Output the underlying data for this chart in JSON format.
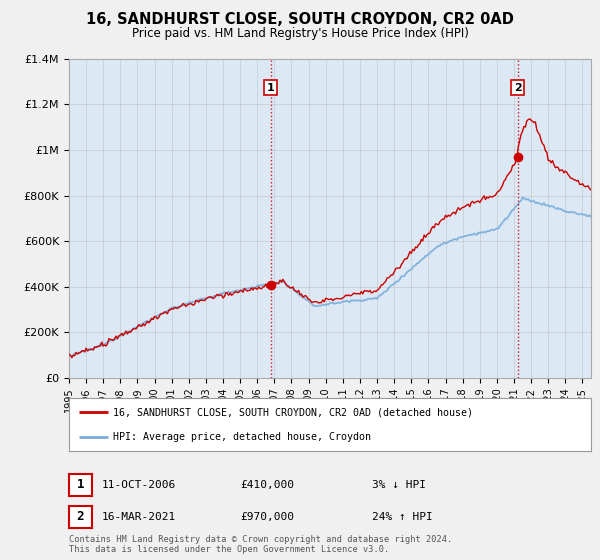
{
  "title": "16, SANDHURST CLOSE, SOUTH CROYDON, CR2 0AD",
  "subtitle": "Price paid vs. HM Land Registry's House Price Index (HPI)",
  "legend_label_red": "16, SANDHURST CLOSE, SOUTH CROYDON, CR2 0AD (detached house)",
  "legend_label_blue": "HPI: Average price, detached house, Croydon",
  "transaction1_label": "1",
  "transaction1_date": "11-OCT-2006",
  "transaction1_price": "£410,000",
  "transaction1_hpi": "3% ↓ HPI",
  "transaction2_label": "2",
  "transaction2_date": "16-MAR-2021",
  "transaction2_price": "£970,000",
  "transaction2_hpi": "24% ↑ HPI",
  "footer": "Contains HM Land Registry data © Crown copyright and database right 2024.\nThis data is licensed under the Open Government Licence v3.0.",
  "vline1_x": 2006.78,
  "vline2_x": 2021.21,
  "dot1_x": 2006.78,
  "dot1_y": 410000,
  "dot2_x": 2021.21,
  "dot2_y": 970000,
  "ylim_min": 0,
  "ylim_max": 1400000,
  "xlim_min": 1995,
  "xlim_max": 2025.5,
  "yticks": [
    0,
    200000,
    400000,
    600000,
    800000,
    1000000,
    1200000,
    1400000
  ],
  "ytick_labels": [
    "£0",
    "£200K",
    "£400K",
    "£600K",
    "£800K",
    "£1M",
    "£1.2M",
    "£1.4M"
  ],
  "xticks": [
    1995,
    1996,
    1997,
    1998,
    1999,
    2000,
    2001,
    2002,
    2003,
    2004,
    2005,
    2006,
    2007,
    2008,
    2009,
    2010,
    2011,
    2012,
    2013,
    2014,
    2015,
    2016,
    2017,
    2018,
    2019,
    2020,
    2021,
    2022,
    2023,
    2024,
    2025
  ],
  "background_color": "#f0f0f0",
  "plot_bg_color": "#dce9f5",
  "red_color": "#cc0000",
  "blue_color": "#7aadda",
  "vline_color": "#cc0000",
  "grid_color": "#bbbbbb"
}
